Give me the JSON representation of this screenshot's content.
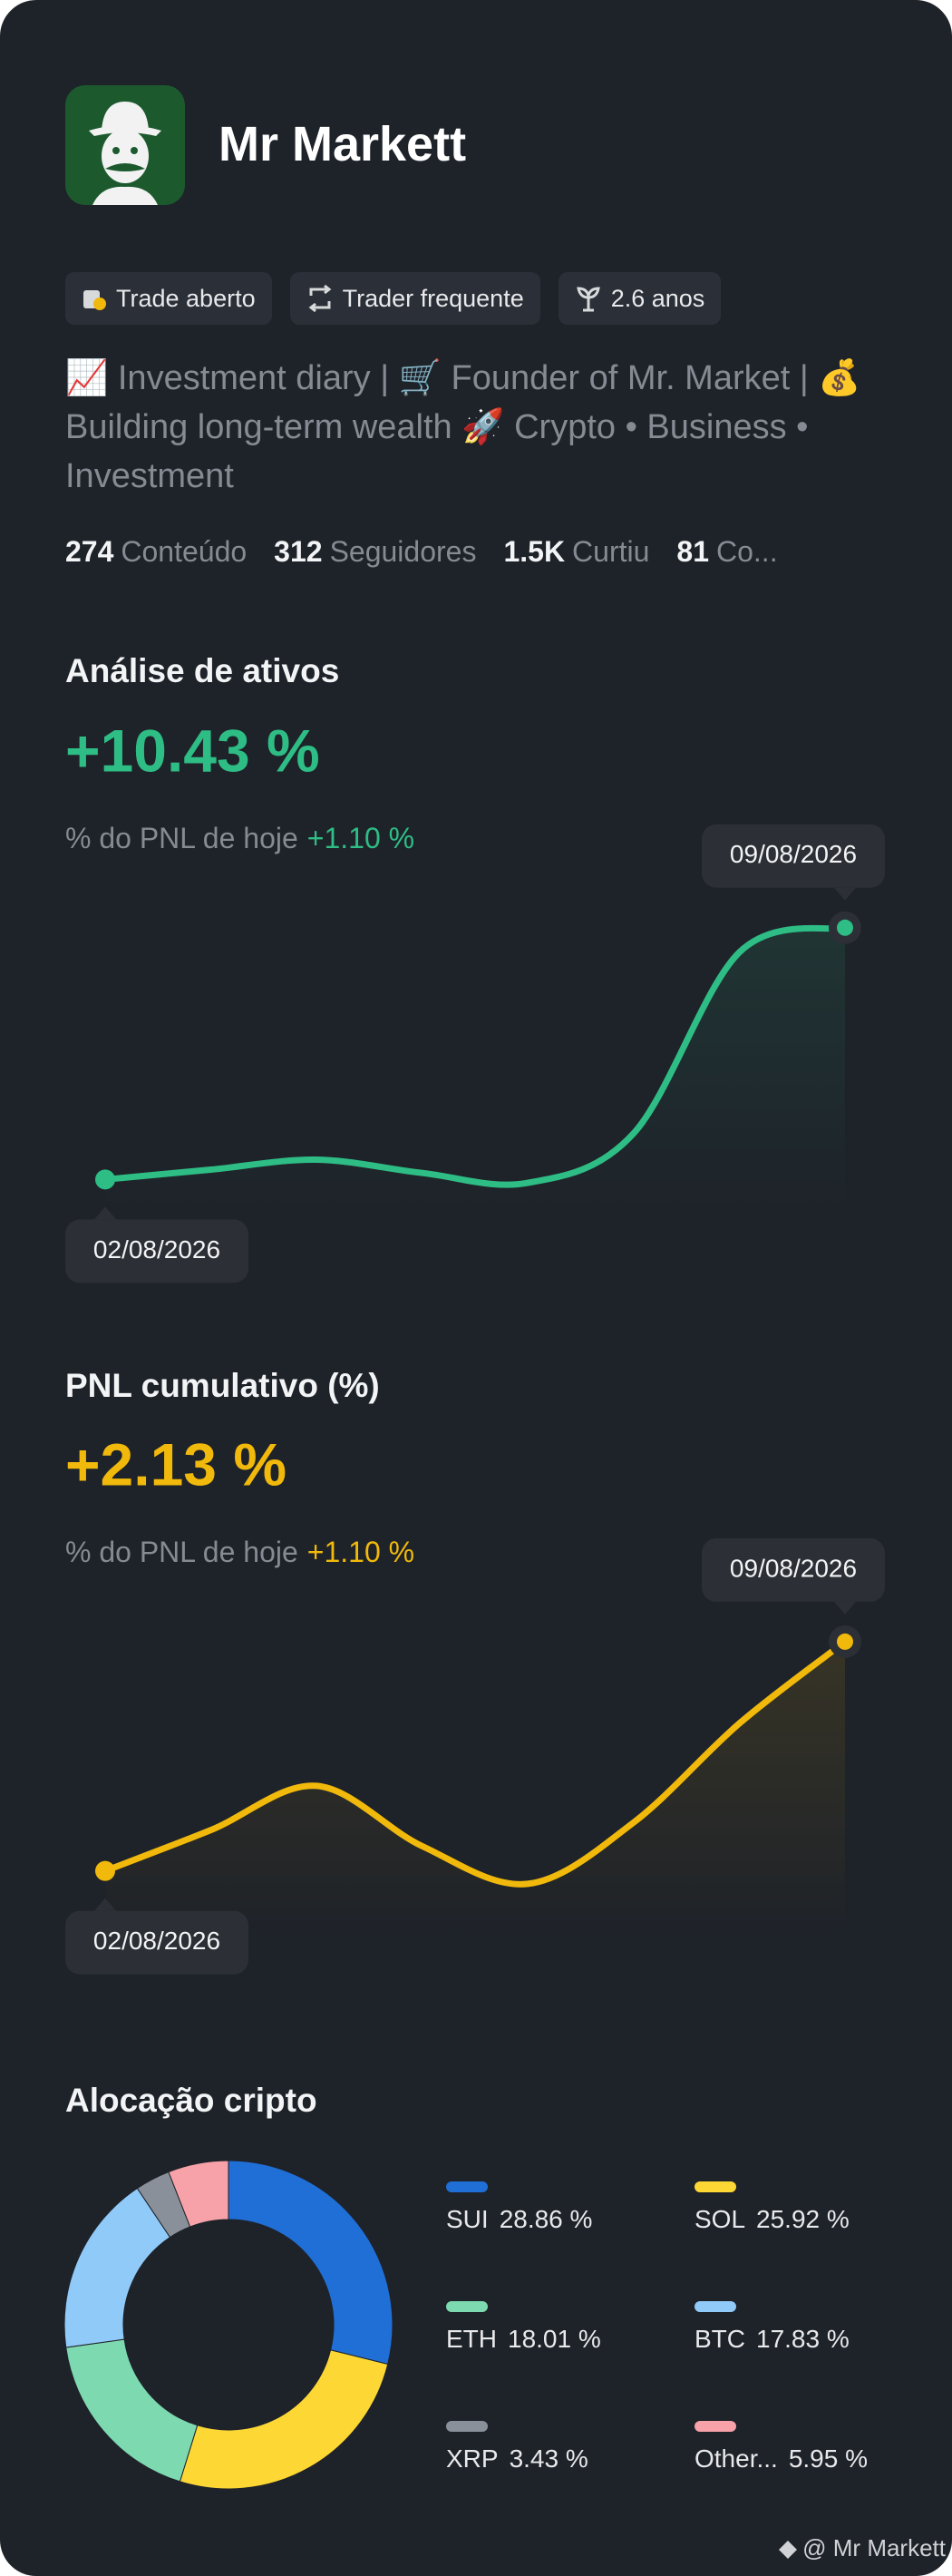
{
  "profile": {
    "name": "Mr Markett",
    "badges": [
      "Trade aberto",
      "Trader frequente",
      "2.6 anos"
    ],
    "bio": "📈 Investment diary | 🛒 Founder of Mr. Market | 💰 Building long-term wealth 🚀 Crypto • Business • Investment",
    "stats": [
      {
        "value": "274",
        "label": "Conteúdo"
      },
      {
        "value": "312",
        "label": "Seguidores"
      },
      {
        "value": "1.5K",
        "label": "Curtiu"
      },
      {
        "value": "81",
        "label": "Co..."
      }
    ]
  },
  "chart_data": [
    {
      "type": "line",
      "title": "Análise de ativos",
      "headline": "+10.43 %",
      "subtitle": "% do PNL de hoje",
      "subtitle_value": "+1.10 %",
      "categories": [
        "02/08/2026",
        null,
        null,
        null,
        null,
        null,
        null,
        "09/08/2026"
      ],
      "values": [
        0,
        0.41,
        0.82,
        0.27,
        -0.14,
        1.91,
        9.41,
        10.43
      ],
      "color": "#2ebd85",
      "ylim": [
        -1,
        12
      ]
    },
    {
      "type": "line",
      "title": "PNL cumulativo (%)",
      "headline": "+2.13 %",
      "subtitle": "% do PNL de hoje",
      "subtitle_value": "+1.10 %",
      "categories": [
        "02/08/2026",
        null,
        null,
        null,
        null,
        null,
        null,
        "09/08/2026"
      ],
      "values": [
        0,
        0.38,
        0.79,
        0.23,
        -0.12,
        0.45,
        1.37,
        2.13
      ],
      "color": "#f0b90b",
      "ylim": [
        -0.5,
        2.5
      ]
    },
    {
      "type": "donut",
      "title": "Alocação cripto",
      "categories": [
        "SUI",
        "SOL",
        "ETH",
        "BTC",
        "XRP",
        "Other..."
      ],
      "values": [
        28.86,
        25.92,
        18.01,
        17.83,
        3.43,
        5.95
      ],
      "value_labels": [
        "28.86 %",
        "25.92 %",
        "18.01 %",
        "17.83 %",
        "3.43 %",
        "5.95 %"
      ],
      "colors": [
        "#1f6fd6",
        "#fdd835",
        "#7dd9b0",
        "#90caf9",
        "#8a9099",
        "#f7a1a8"
      ]
    }
  ],
  "footer": "@ Mr Markett"
}
